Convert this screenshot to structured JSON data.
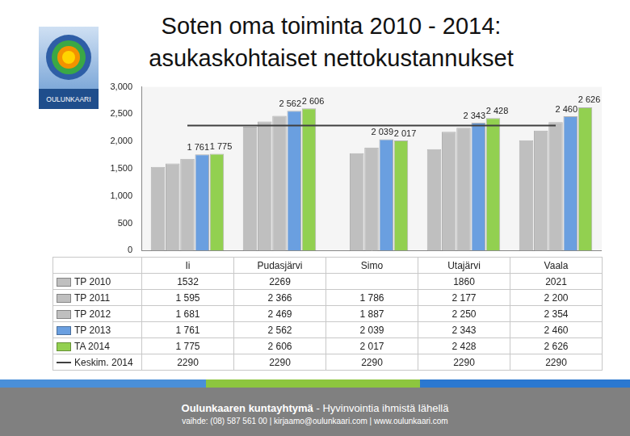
{
  "title": [
    "Soten oma toiminta 2010 - 2014:",
    "asukaskohtaiset nettokustannukset"
  ],
  "logo": {
    "text": "OULUNKAARI"
  },
  "footer": {
    "name": "Oulunkaaren kuntayhtymä",
    "slogan": " - Hyvinvointia ihmistä lähellä",
    "contact": "vaihde: (08) 587 561 00  |  kirjaamo@oulunkaari.com  |  www.oulunkaari.com"
  },
  "chart_data": {
    "type": "bar",
    "categories": [
      "Ii",
      "Pudasjärvi",
      "Simo",
      "Utajärvi",
      "Vaala"
    ],
    "ylim": [
      0,
      3000
    ],
    "yticks": [
      0,
      500,
      1000,
      1500,
      2000,
      2500,
      3000
    ],
    "grid": false,
    "series": [
      {
        "name": "TP 2010",
        "color": "#bfbfbf",
        "values": [
          1532,
          2269,
          null,
          1860,
          2021
        ],
        "value_labels": [
          "1532",
          "2269",
          null,
          "1860",
          "2021"
        ]
      },
      {
        "name": "TP 2011",
        "color": "#bfbfbf",
        "values": [
          1595,
          2366,
          1786,
          2177,
          2200
        ],
        "value_labels": [
          "1 595",
          "2 366",
          "1 786",
          "2 177",
          "2 200"
        ]
      },
      {
        "name": "TP 2012",
        "color": "#bfbfbf",
        "values": [
          1681,
          2469,
          1887,
          2250,
          2354
        ],
        "value_labels": [
          "1 681",
          "2 469",
          "1 887",
          "2 250",
          "2 354"
        ]
      },
      {
        "name": "TP 2013",
        "color": "#6a9fe0",
        "values": [
          1761,
          2562,
          2039,
          2343,
          2460
        ],
        "value_labels": [
          "1 761",
          "2 562",
          "2 039",
          "2 343",
          "2 460"
        ],
        "data_labels": true
      },
      {
        "name": "TA 2014",
        "color": "#92d050",
        "values": [
          1775,
          2606,
          2017,
          2428,
          2626
        ],
        "value_labels": [
          "1 775",
          "2 606",
          "2 017",
          "2 428",
          "2 626"
        ],
        "data_labels": true
      },
      {
        "name": "Keskim. 2014",
        "color": "#404040",
        "type": "line",
        "line_style": "solid",
        "values": [
          2290,
          2290,
          2290,
          2290,
          2290
        ],
        "value_labels": [
          "2290",
          "2290",
          "2290",
          "2290",
          "2290"
        ]
      }
    ]
  }
}
